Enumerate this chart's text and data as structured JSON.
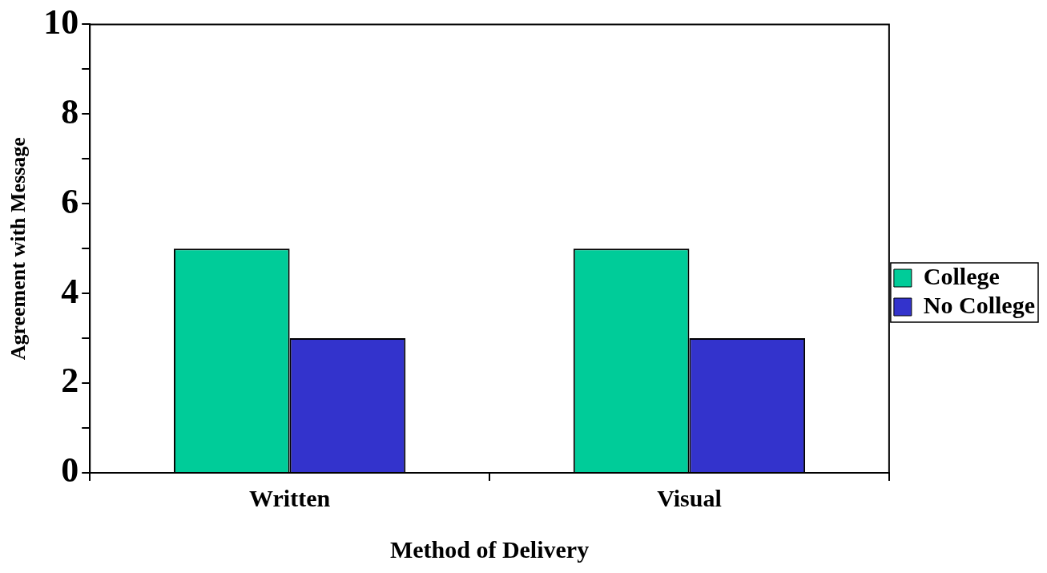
{
  "chart_data": {
    "type": "bar",
    "xlabel": "Method of Delivery",
    "ylabel": "Agreement with Message",
    "categories": [
      "Written",
      "Visual"
    ],
    "series": [
      {
        "name": "College",
        "color": "#00cc99",
        "values": [
          5,
          5
        ]
      },
      {
        "name": "No College",
        "color": "#3333cc",
        "values": [
          3,
          3
        ]
      }
    ],
    "ylim": [
      0,
      10
    ],
    "yticks": [
      0,
      {
        "value": 1,
        "label": null
      },
      2,
      {
        "value": 3,
        "label": null
      },
      4,
      {
        "value": 5,
        "label": null
      },
      6,
      {
        "value": 7,
        "label": null
      },
      8,
      {
        "value": 9,
        "label": null
      },
      10
    ],
    "grid": false,
    "legend": "right"
  }
}
